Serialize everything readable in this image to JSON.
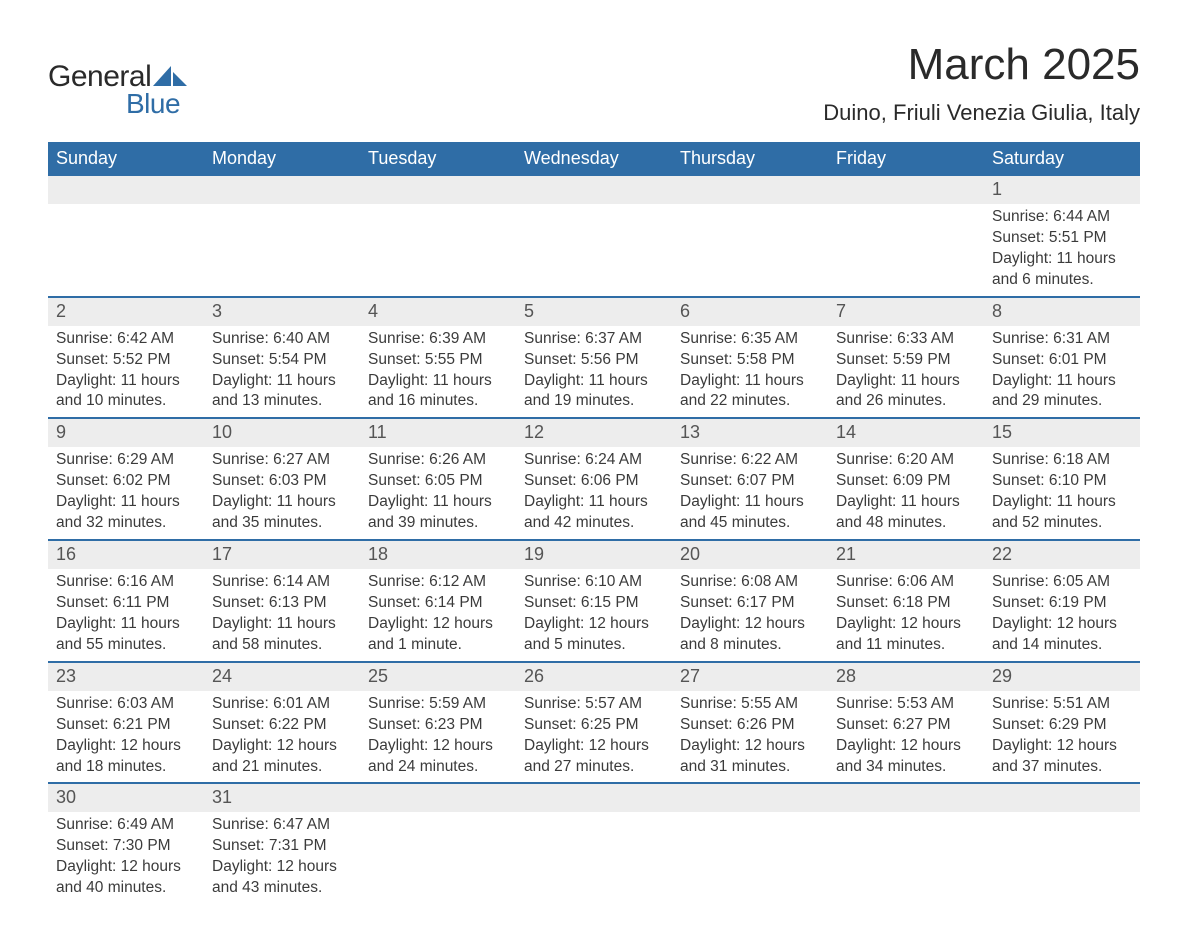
{
  "logo": {
    "text_general": "General",
    "text_blue": "Blue",
    "shape_color": "#2f6da6"
  },
  "header": {
    "month_title": "March 2025",
    "location": "Duino, Friuli Venezia Giulia, Italy",
    "title_fontsize": 44,
    "location_fontsize": 22
  },
  "colors": {
    "header_bg": "#2f6da6",
    "header_text": "#ffffff",
    "daynum_bg": "#ededed",
    "daynum_text": "#555555",
    "body_text": "#3b3b3b",
    "row_divider": "#2f6da6",
    "background": "#ffffff"
  },
  "day_names": [
    "Sunday",
    "Monday",
    "Tuesday",
    "Wednesday",
    "Thursday",
    "Friday",
    "Saturday"
  ],
  "weeks": [
    [
      {
        "empty": true
      },
      {
        "empty": true
      },
      {
        "empty": true
      },
      {
        "empty": true
      },
      {
        "empty": true
      },
      {
        "empty": true
      },
      {
        "day": "1",
        "sunrise": "Sunrise: 6:44 AM",
        "sunset": "Sunset: 5:51 PM",
        "daylight": "Daylight: 11 hours and 6 minutes."
      }
    ],
    [
      {
        "day": "2",
        "sunrise": "Sunrise: 6:42 AM",
        "sunset": "Sunset: 5:52 PM",
        "daylight": "Daylight: 11 hours and 10 minutes."
      },
      {
        "day": "3",
        "sunrise": "Sunrise: 6:40 AM",
        "sunset": "Sunset: 5:54 PM",
        "daylight": "Daylight: 11 hours and 13 minutes."
      },
      {
        "day": "4",
        "sunrise": "Sunrise: 6:39 AM",
        "sunset": "Sunset: 5:55 PM",
        "daylight": "Daylight: 11 hours and 16 minutes."
      },
      {
        "day": "5",
        "sunrise": "Sunrise: 6:37 AM",
        "sunset": "Sunset: 5:56 PM",
        "daylight": "Daylight: 11 hours and 19 minutes."
      },
      {
        "day": "6",
        "sunrise": "Sunrise: 6:35 AM",
        "sunset": "Sunset: 5:58 PM",
        "daylight": "Daylight: 11 hours and 22 minutes."
      },
      {
        "day": "7",
        "sunrise": "Sunrise: 6:33 AM",
        "sunset": "Sunset: 5:59 PM",
        "daylight": "Daylight: 11 hours and 26 minutes."
      },
      {
        "day": "8",
        "sunrise": "Sunrise: 6:31 AM",
        "sunset": "Sunset: 6:01 PM",
        "daylight": "Daylight: 11 hours and 29 minutes."
      }
    ],
    [
      {
        "day": "9",
        "sunrise": "Sunrise: 6:29 AM",
        "sunset": "Sunset: 6:02 PM",
        "daylight": "Daylight: 11 hours and 32 minutes."
      },
      {
        "day": "10",
        "sunrise": "Sunrise: 6:27 AM",
        "sunset": "Sunset: 6:03 PM",
        "daylight": "Daylight: 11 hours and 35 minutes."
      },
      {
        "day": "11",
        "sunrise": "Sunrise: 6:26 AM",
        "sunset": "Sunset: 6:05 PM",
        "daylight": "Daylight: 11 hours and 39 minutes."
      },
      {
        "day": "12",
        "sunrise": "Sunrise: 6:24 AM",
        "sunset": "Sunset: 6:06 PM",
        "daylight": "Daylight: 11 hours and 42 minutes."
      },
      {
        "day": "13",
        "sunrise": "Sunrise: 6:22 AM",
        "sunset": "Sunset: 6:07 PM",
        "daylight": "Daylight: 11 hours and 45 minutes."
      },
      {
        "day": "14",
        "sunrise": "Sunrise: 6:20 AM",
        "sunset": "Sunset: 6:09 PM",
        "daylight": "Daylight: 11 hours and 48 minutes."
      },
      {
        "day": "15",
        "sunrise": "Sunrise: 6:18 AM",
        "sunset": "Sunset: 6:10 PM",
        "daylight": "Daylight: 11 hours and 52 minutes."
      }
    ],
    [
      {
        "day": "16",
        "sunrise": "Sunrise: 6:16 AM",
        "sunset": "Sunset: 6:11 PM",
        "daylight": "Daylight: 11 hours and 55 minutes."
      },
      {
        "day": "17",
        "sunrise": "Sunrise: 6:14 AM",
        "sunset": "Sunset: 6:13 PM",
        "daylight": "Daylight: 11 hours and 58 minutes."
      },
      {
        "day": "18",
        "sunrise": "Sunrise: 6:12 AM",
        "sunset": "Sunset: 6:14 PM",
        "daylight": "Daylight: 12 hours and 1 minute."
      },
      {
        "day": "19",
        "sunrise": "Sunrise: 6:10 AM",
        "sunset": "Sunset: 6:15 PM",
        "daylight": "Daylight: 12 hours and 5 minutes."
      },
      {
        "day": "20",
        "sunrise": "Sunrise: 6:08 AM",
        "sunset": "Sunset: 6:17 PM",
        "daylight": "Daylight: 12 hours and 8 minutes."
      },
      {
        "day": "21",
        "sunrise": "Sunrise: 6:06 AM",
        "sunset": "Sunset: 6:18 PM",
        "daylight": "Daylight: 12 hours and 11 minutes."
      },
      {
        "day": "22",
        "sunrise": "Sunrise: 6:05 AM",
        "sunset": "Sunset: 6:19 PM",
        "daylight": "Daylight: 12 hours and 14 minutes."
      }
    ],
    [
      {
        "day": "23",
        "sunrise": "Sunrise: 6:03 AM",
        "sunset": "Sunset: 6:21 PM",
        "daylight": "Daylight: 12 hours and 18 minutes."
      },
      {
        "day": "24",
        "sunrise": "Sunrise: 6:01 AM",
        "sunset": "Sunset: 6:22 PM",
        "daylight": "Daylight: 12 hours and 21 minutes."
      },
      {
        "day": "25",
        "sunrise": "Sunrise: 5:59 AM",
        "sunset": "Sunset: 6:23 PM",
        "daylight": "Daylight: 12 hours and 24 minutes."
      },
      {
        "day": "26",
        "sunrise": "Sunrise: 5:57 AM",
        "sunset": "Sunset: 6:25 PM",
        "daylight": "Daylight: 12 hours and 27 minutes."
      },
      {
        "day": "27",
        "sunrise": "Sunrise: 5:55 AM",
        "sunset": "Sunset: 6:26 PM",
        "daylight": "Daylight: 12 hours and 31 minutes."
      },
      {
        "day": "28",
        "sunrise": "Sunrise: 5:53 AM",
        "sunset": "Sunset: 6:27 PM",
        "daylight": "Daylight: 12 hours and 34 minutes."
      },
      {
        "day": "29",
        "sunrise": "Sunrise: 5:51 AM",
        "sunset": "Sunset: 6:29 PM",
        "daylight": "Daylight: 12 hours and 37 minutes."
      }
    ],
    [
      {
        "day": "30",
        "sunrise": "Sunrise: 6:49 AM",
        "sunset": "Sunset: 7:30 PM",
        "daylight": "Daylight: 12 hours and 40 minutes."
      },
      {
        "day": "31",
        "sunrise": "Sunrise: 6:47 AM",
        "sunset": "Sunset: 7:31 PM",
        "daylight": "Daylight: 12 hours and 43 minutes."
      },
      {
        "empty": true
      },
      {
        "empty": true
      },
      {
        "empty": true
      },
      {
        "empty": true
      },
      {
        "empty": true
      }
    ]
  ]
}
